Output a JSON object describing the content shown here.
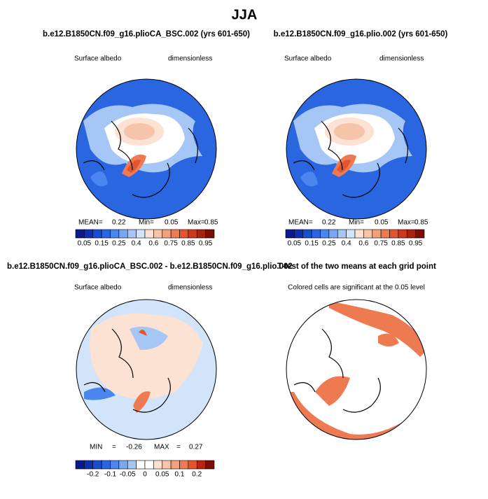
{
  "title": "JJA",
  "panels": [
    {
      "title": "b.e12.B1850CN.f09_g16.plioCA_BSC.002 (yrs 601-650)",
      "left_label": "Surface albedo",
      "right_label": "dimensionless",
      "stats": [
        "MEAN=",
        "0.22",
        "Min=",
        "0.05",
        "Max=",
        "0.85"
      ],
      "colorbar": {
        "labels": [
          "0.05",
          "0.15",
          "0.25",
          "0.4",
          "0.6",
          "0.75",
          "0.85",
          "0.95"
        ],
        "colors": [
          "#0a1a8c",
          "#1030b0",
          "#1a4ed0",
          "#2a66e0",
          "#4a86ee",
          "#7aa6f2",
          "#a6c6f6",
          "#d2e4fa",
          "#fbe2d2",
          "#f6c4a8",
          "#f2a07c",
          "#ee7a52",
          "#e4552f",
          "#cc3a1e",
          "#a8220e",
          "#7c0c04"
        ]
      }
    },
    {
      "title": "b.e12.B1850CN.f09_g16.plio.002 (yrs 601-650)",
      "left_label": "Surface albedo",
      "right_label": "dimensionless",
      "stats": [
        "MEAN=",
        "0.22",
        "Min=",
        "0.05",
        "Max=",
        "0.85"
      ],
      "colorbar": {
        "labels": [
          "0.05",
          "0.15",
          "0.25",
          "0.4",
          "0.6",
          "0.75",
          "0.85",
          "0.95"
        ],
        "colors": [
          "#0a1a8c",
          "#1030b0",
          "#1a4ed0",
          "#2a66e0",
          "#4a86ee",
          "#7aa6f2",
          "#a6c6f6",
          "#d2e4fa",
          "#fbe2d2",
          "#f6c4a8",
          "#f2a07c",
          "#ee7a52",
          "#e4552f",
          "#cc3a1e",
          "#a8220e",
          "#7c0c04"
        ]
      }
    },
    {
      "title": "b.e12.B1850CN.f09_g16.plioCA_BSC.002 - b.e12.B1850CN.f09_g16.plio.002",
      "left_label": "Surface albedo",
      "right_label": "dimensionless",
      "stats": [
        "MIN",
        "=",
        "-0.26",
        "MAX",
        "=",
        "0.27"
      ],
      "colorbar": {
        "labels": [
          "-0.2",
          "-0.1",
          "-0.05",
          "0",
          "0.05",
          "0.1",
          "0.2"
        ],
        "colors": [
          "#0a1a8c",
          "#1030b0",
          "#1a4ed0",
          "#2a66e0",
          "#4a86ee",
          "#7aa6f2",
          "#a6c6f6",
          "#ffffff",
          "#ffffff",
          "#fbe2d2",
          "#f6c4a8",
          "#f2a07c",
          "#ee7a52",
          "#e4552f",
          "#b8240e",
          "#7c0c04"
        ]
      }
    },
    {
      "title": "T-test of the two means at each grid point",
      "subtitle": "Colored cells are significant at the 0.05 level"
    }
  ]
}
